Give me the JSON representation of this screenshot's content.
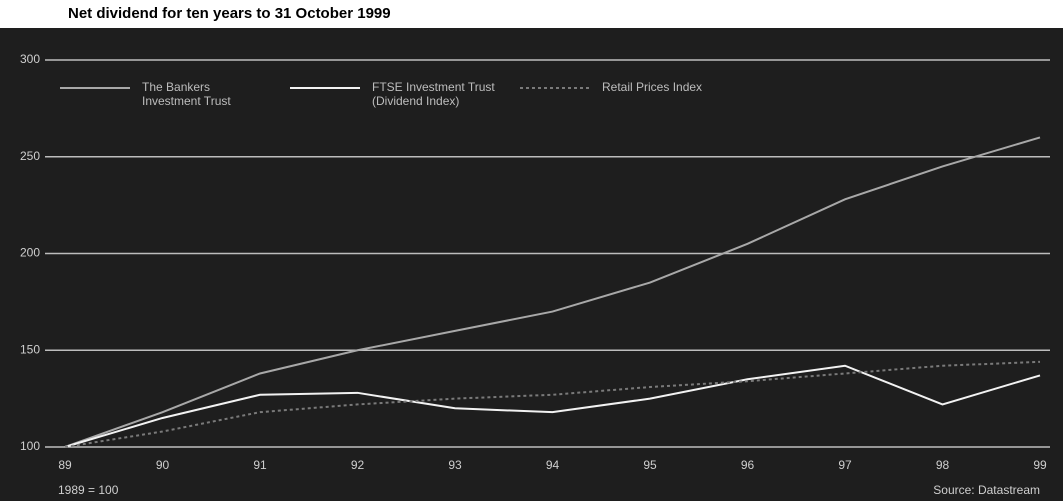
{
  "chart_data": {
    "type": "line",
    "title": "Net dividend for ten years to 31 October 1999",
    "categories": [
      "89",
      "90",
      "91",
      "92",
      "93",
      "94",
      "95",
      "96",
      "97",
      "98",
      "99"
    ],
    "series": [
      {
        "name": "The Bankers Investment Trust",
        "color": "#a8a8a8",
        "dash": "none",
        "values": [
          100,
          118,
          138,
          150,
          160,
          170,
          185,
          205,
          228,
          245,
          260
        ]
      },
      {
        "name": "FTSE Investment Trust (Dividend Index)",
        "color": "#f2f2f2",
        "dash": "none",
        "values": [
          100,
          115,
          127,
          128,
          120,
          118,
          125,
          135,
          142,
          122,
          137
        ]
      },
      {
        "name": "Retail Prices Index",
        "color": "#7a7a7a",
        "dash": "3 3",
        "values": [
          100,
          108,
          118,
          122,
          125,
          127,
          131,
          134,
          138,
          142,
          144
        ]
      }
    ],
    "ylim": [
      100,
      300
    ],
    "yticks": [
      100,
      150,
      200,
      250,
      300
    ],
    "grid": true,
    "footnote": "1989 = 100",
    "source": "Source: Datastream"
  }
}
